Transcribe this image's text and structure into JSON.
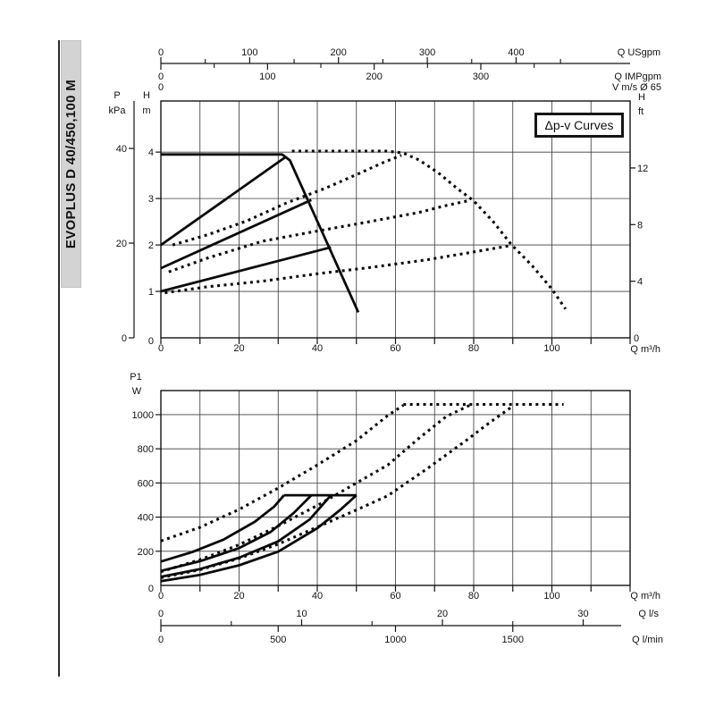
{
  "sidebar": {
    "model": "EVOPLUS D 40/450,100 M",
    "strip_color": "#d3d3d3"
  },
  "annotation": {
    "label": "Δp-v Curves"
  },
  "colors": {
    "ink": "#131313",
    "grid": "#3f3f3f",
    "curve": "#0a0a0a"
  },
  "chart_data": [
    {
      "type": "line",
      "name": "head-flow-chart",
      "x_axis": {
        "unit_label": "Q m³/h",
        "range": [
          0,
          120
        ],
        "grid_step": 10,
        "labeled_ticks": [
          0,
          20,
          40,
          60,
          80,
          100
        ]
      },
      "y_axis": {
        "unit_label_top": "H",
        "unit_label_bottom": "m",
        "range": [
          0,
          5.1
        ],
        "grid_ticks": [
          1,
          2,
          3,
          4
        ],
        "labeled_ticks": [
          0,
          1,
          2,
          3,
          4
        ]
      },
      "y_axis_kpa": {
        "unit_label_top": "P",
        "unit_label_bottom": "kPa",
        "labeled_ticks": [
          0,
          20,
          40
        ],
        "m_per_unit": 0.10197
      },
      "y_axis_ft": {
        "unit_label_top": "H",
        "unit_label_bottom": "ft",
        "labeled_ticks": [
          0,
          4,
          8,
          12
        ],
        "m_per_unit": 0.3048
      },
      "axis_usgpm": {
        "unit_label": "Q USgpm",
        "labeled_ticks": [
          0,
          100,
          200,
          300,
          400
        ],
        "minor_ticks": [
          50,
          150,
          250,
          350,
          450
        ],
        "m3h_per_unit": 0.22712
      },
      "axis_impgpm": {
        "unit_label": "Q IMPgpm",
        "labeled_ticks": [
          0,
          100,
          200,
          300
        ],
        "minor_ticks": [
          50,
          150,
          250,
          350
        ],
        "m3h_per_unit": 0.27276
      },
      "axis_velocity": {
        "unit_label": "V m/s Ø 65",
        "labeled_ticks": [
          0
        ],
        "m3h_per_unit": 11.95
      },
      "series": [
        {
          "name": "max-head-limit-solid",
          "style": "solid",
          "points": [
            [
              0,
              3.95
            ],
            [
              31,
              3.95
            ],
            [
              33,
              3.82
            ],
            [
              50.5,
              0.55
            ]
          ]
        },
        {
          "name": "dpv-setting-4m-solid",
          "style": "solid",
          "points": [
            [
              0,
              2.0
            ],
            [
              32,
              3.9
            ]
          ]
        },
        {
          "name": "dpv-setting-3m-solid",
          "style": "solid",
          "points": [
            [
              0,
              1.5
            ],
            [
              38.5,
              2.97
            ]
          ]
        },
        {
          "name": "dpv-setting-2m-solid",
          "style": "solid",
          "points": [
            [
              0,
              1.0
            ],
            [
              43.5,
              1.95
            ]
          ]
        },
        {
          "name": "max-speed-envelope-dotted",
          "style": "dotted",
          "points": [
            [
              33.5,
              4.02
            ],
            [
              58,
              4.02
            ],
            [
              62,
              3.98
            ],
            [
              66,
              3.83
            ],
            [
              71,
              3.55
            ],
            [
              76,
              3.2
            ],
            [
              80,
              2.95
            ],
            [
              85,
              2.5
            ],
            [
              89.5,
              2.02
            ],
            [
              95,
              1.55
            ],
            [
              100,
              1.05
            ],
            [
              103.5,
              0.62
            ]
          ]
        },
        {
          "name": "dpv-max-4m-dotted",
          "style": "dotted",
          "points": [
            [
              3,
              2.0
            ],
            [
              12,
              2.22
            ],
            [
              22,
              2.52
            ],
            [
              32,
              2.9
            ],
            [
              42,
              3.22
            ],
            [
              51,
              3.55
            ],
            [
              57,
              3.78
            ],
            [
              61.5,
              3.93
            ]
          ]
        },
        {
          "name": "dpv-max-3m-dotted",
          "style": "dotted",
          "points": [
            [
              2,
              1.42
            ],
            [
              12,
              1.72
            ],
            [
              26,
              2.08
            ],
            [
              40,
              2.3
            ],
            [
              52,
              2.48
            ],
            [
              66,
              2.7
            ],
            [
              73,
              2.85
            ],
            [
              78.5,
              2.95
            ]
          ]
        },
        {
          "name": "dpv-max-2m-dotted",
          "style": "dotted",
          "points": [
            [
              1,
              0.97
            ],
            [
              12,
              1.1
            ],
            [
              26,
              1.22
            ],
            [
              40,
              1.38
            ],
            [
              54,
              1.52
            ],
            [
              68,
              1.68
            ],
            [
              80,
              1.85
            ],
            [
              89,
              1.98
            ]
          ]
        }
      ]
    },
    {
      "type": "line",
      "name": "power-flow-chart",
      "x_axis": {
        "unit_label": "Q m³/h",
        "range": [
          0,
          120
        ],
        "grid_step": 10,
        "labeled_ticks": [
          0,
          20,
          40,
          60,
          80,
          100
        ]
      },
      "y_axis": {
        "unit_label_top": "P1",
        "unit_label_bottom": "W",
        "range": [
          0,
          1141
        ],
        "grid_ticks": [
          200,
          400,
          600,
          800,
          1000
        ],
        "labeled_ticks": [
          0,
          200,
          400,
          600,
          800,
          1000
        ]
      },
      "axis_ls": {
        "unit_label": "Q l/s",
        "labeled_ticks": [
          0,
          10,
          20,
          30
        ],
        "minor_ticks": [
          5,
          15,
          25
        ],
        "m3h_per_unit": 3.6
      },
      "axis_lmin": {
        "unit_label": "Q l/min",
        "labeled_ticks": [
          0,
          500,
          1000,
          1500
        ],
        "m3h_per_unit": 0.06
      },
      "series": [
        {
          "name": "p1-cap-530w-solid",
          "style": "solid",
          "points": [
            [
              31.5,
              528
            ],
            [
              50,
              528
            ]
          ]
        },
        {
          "name": "p1-setting1-solid",
          "style": "solid",
          "points": [
            [
              0,
              140
            ],
            [
              8,
              195
            ],
            [
              16,
              268
            ],
            [
              24,
              372
            ],
            [
              29,
              462
            ],
            [
              31.5,
              528
            ]
          ]
        },
        {
          "name": "p1-setting2-solid",
          "style": "solid",
          "points": [
            [
              0,
              85
            ],
            [
              10,
              142
            ],
            [
              20,
              218
            ],
            [
              28,
              312
            ],
            [
              34,
              425
            ],
            [
              38.5,
              528
            ]
          ]
        },
        {
          "name": "p1-setting3-solid",
          "style": "solid",
          "points": [
            [
              0,
              50
            ],
            [
              10,
              96
            ],
            [
              20,
              162
            ],
            [
              30,
              258
            ],
            [
              38,
              385
            ],
            [
              43.5,
              528
            ]
          ]
        },
        {
          "name": "p1-setting4-solid",
          "style": "solid",
          "points": [
            [
              0,
              25
            ],
            [
              10,
              62
            ],
            [
              20,
              118
            ],
            [
              30,
              198
            ],
            [
              40,
              335
            ],
            [
              46,
              445
            ],
            [
              50,
              528
            ]
          ]
        },
        {
          "name": "p1-max-plateau-1060w-dotted",
          "style": "dotted",
          "points": [
            [
              62,
              1060
            ],
            [
              103,
              1060
            ]
          ]
        },
        {
          "name": "p1-max1-dotted",
          "style": "dotted",
          "points": [
            [
              0,
              260
            ],
            [
              10,
              340
            ],
            [
              20,
              445
            ],
            [
              30,
              570
            ],
            [
              40,
              705
            ],
            [
              50,
              848
            ],
            [
              58,
              995
            ],
            [
              62,
              1055
            ]
          ]
        },
        {
          "name": "p1-max2-dotted",
          "style": "dotted",
          "points": [
            [
              0,
              80
            ],
            [
              10,
              150
            ],
            [
              20,
              238
            ],
            [
              30,
              348
            ],
            [
              40,
              468
            ],
            [
              50,
              600
            ],
            [
              58,
              705
            ],
            [
              66,
              862
            ],
            [
              73,
              990
            ],
            [
              79,
              1055
            ]
          ]
        },
        {
          "name": "p1-max3-dotted",
          "style": "dotted",
          "points": [
            [
              0,
              45
            ],
            [
              10,
              92
            ],
            [
              20,
              158
            ],
            [
              30,
              242
            ],
            [
              40,
              342
            ],
            [
              50,
              442
            ],
            [
              58,
              525
            ],
            [
              68,
              682
            ],
            [
              78,
              848
            ],
            [
              84,
              952
            ],
            [
              90,
              1050
            ]
          ]
        }
      ]
    }
  ]
}
